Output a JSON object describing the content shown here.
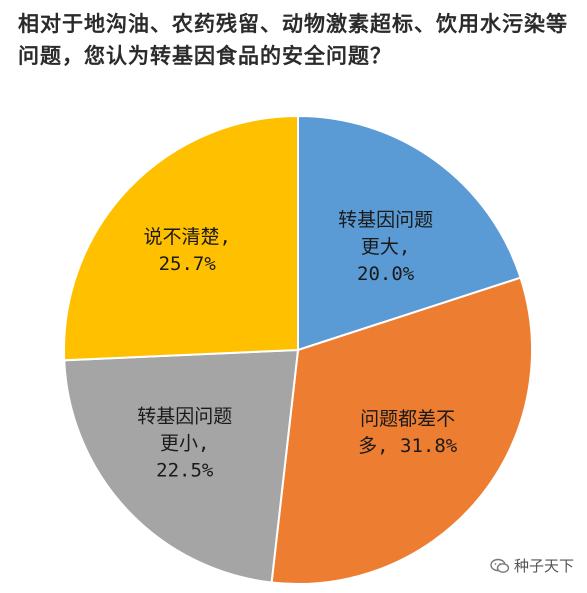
{
  "chart_data": {
    "type": "pie",
    "title": "相对于地沟油、农药残留、动物激素超标、饮用水污染等问题，您认为转基因食品的安全问题？",
    "slices": [
      {
        "lines": [
          "转基因问题",
          "更大,",
          "20.0%"
        ],
        "value": 20.0,
        "color": "#5b9bd5"
      },
      {
        "lines": [
          "问题都差不",
          "多, 31.8%"
        ],
        "value": 31.8,
        "color": "#ed7d31"
      },
      {
        "lines": [
          "转基因问题",
          "更小,",
          "22.5%"
        ],
        "value": 22.5,
        "color": "#a5a5a5"
      },
      {
        "lines": [
          "说不清楚,",
          "25.7%"
        ],
        "value": 25.7,
        "color": "#ffc000"
      }
    ]
  },
  "watermark": {
    "text": "种子天下"
  }
}
